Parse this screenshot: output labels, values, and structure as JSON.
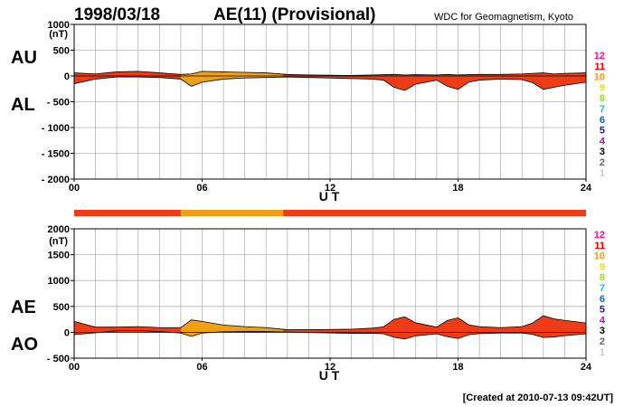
{
  "header": {
    "date": "1998/03/18",
    "title": "AE(11) (Provisional)",
    "source": "WDC for Geomagnetism, Kyoto"
  },
  "footer": {
    "created": "[Created at 2010-07-13 09:42UT]"
  },
  "colors": {
    "grid": "#b4b4b4",
    "fill_default": "#f03c14",
    "fill_orange": "#f0a014",
    "outline": "#000000"
  },
  "station_scale": {
    "labels": [
      "12",
      "11",
      "10",
      "9",
      "8",
      "7",
      "6",
      "5",
      "4",
      "3",
      "2",
      "1"
    ],
    "colors": [
      "#ff1493",
      "#e60000",
      "#ff9900",
      "#f5dc00",
      "#a0e600",
      "#00d2d2",
      "#0064ff",
      "#1e1ea0",
      "#c800c8",
      "#000000",
      "#646464",
      "#c8c8c8"
    ]
  },
  "coverage_bar": [
    {
      "from": 0,
      "to": 5,
      "color": "#f03c14"
    },
    {
      "from": 5,
      "to": 9.8,
      "color": "#f0a014"
    },
    {
      "from": 9.8,
      "to": 24,
      "color": "#f03c14"
    }
  ],
  "chart_data": [
    {
      "type": "area",
      "panel": "top",
      "series_labels": [
        "AU",
        "AL"
      ],
      "unit": "(nT)",
      "xlabel": "U T",
      "xlim": [
        0,
        24
      ],
      "ylim": [
        -2000,
        1000
      ],
      "y_ticks": [
        1000,
        500,
        0,
        -500,
        -1000,
        -1500,
        -2000
      ],
      "y_tick_labels": [
        "1000",
        "500",
        "0",
        "- 500",
        "- 1000",
        "- 1500",
        "- 2000"
      ],
      "x_ticks": [
        0,
        6,
        12,
        18,
        24
      ],
      "x_tick_labels": [
        "00",
        "06",
        "12",
        "18",
        "24"
      ],
      "grid": true,
      "x": [
        0,
        1,
        2,
        3,
        4,
        5,
        5.5,
        6,
        7,
        8,
        9,
        10,
        11,
        12,
        13,
        14,
        14.5,
        15,
        15.5,
        16,
        17,
        17.5,
        18,
        18.5,
        19,
        20,
        21,
        21.5,
        22,
        22.5,
        23,
        24
      ],
      "series": [
        {
          "name": "AU",
          "values": [
            60,
            40,
            80,
            90,
            60,
            30,
            40,
            90,
            80,
            70,
            60,
            30,
            20,
            15,
            10,
            20,
            25,
            30,
            20,
            25,
            20,
            30,
            20,
            25,
            30,
            30,
            40,
            50,
            60,
            40,
            50,
            60
          ]
        },
        {
          "name": "AL",
          "values": [
            -150,
            -60,
            -20,
            -20,
            -30,
            -60,
            -200,
            -120,
            -60,
            -40,
            -30,
            -20,
            -30,
            -40,
            -50,
            -60,
            -80,
            -220,
            -280,
            -160,
            -80,
            -200,
            -260,
            -120,
            -80,
            -60,
            -70,
            -130,
            -260,
            -220,
            -180,
            -120
          ]
        }
      ]
    },
    {
      "type": "area",
      "panel": "bottom",
      "series_labels": [
        "AE",
        "AO"
      ],
      "unit": "(nT)",
      "xlabel": "U T",
      "xlim": [
        0,
        24
      ],
      "ylim": [
        -500,
        2000
      ],
      "y_ticks": [
        2000,
        1500,
        1000,
        500,
        0,
        -500
      ],
      "y_tick_labels": [
        "2000",
        "1500",
        "1000",
        "500",
        "0",
        "- 500"
      ],
      "x_ticks": [
        0,
        6,
        12,
        18,
        24
      ],
      "x_tick_labels": [
        "00",
        "06",
        "12",
        "18",
        "24"
      ],
      "grid": true,
      "x": [
        0,
        1,
        2,
        3,
        4,
        5,
        5.5,
        6,
        7,
        8,
        9,
        10,
        11,
        12,
        13,
        14,
        14.5,
        15,
        15.5,
        16,
        17,
        17.5,
        18,
        18.5,
        19,
        20,
        21,
        21.5,
        22,
        22.5,
        23,
        24
      ],
      "series": [
        {
          "name": "AE",
          "values": [
            210,
            100,
            100,
            110,
            90,
            90,
            240,
            210,
            140,
            110,
            90,
            50,
            50,
            55,
            60,
            80,
            105,
            250,
            300,
            185,
            100,
            230,
            280,
            145,
            110,
            90,
            110,
            180,
            320,
            260,
            230,
            180
          ]
        },
        {
          "name": "AO",
          "values": [
            -45,
            -10,
            30,
            35,
            15,
            -15,
            -80,
            -15,
            10,
            15,
            15,
            5,
            -5,
            -12,
            -20,
            -20,
            -28,
            -95,
            -130,
            -68,
            -30,
            -85,
            -120,
            -48,
            -25,
            -15,
            -15,
            -40,
            -100,
            -90,
            -65,
            -30
          ]
        }
      ]
    }
  ]
}
